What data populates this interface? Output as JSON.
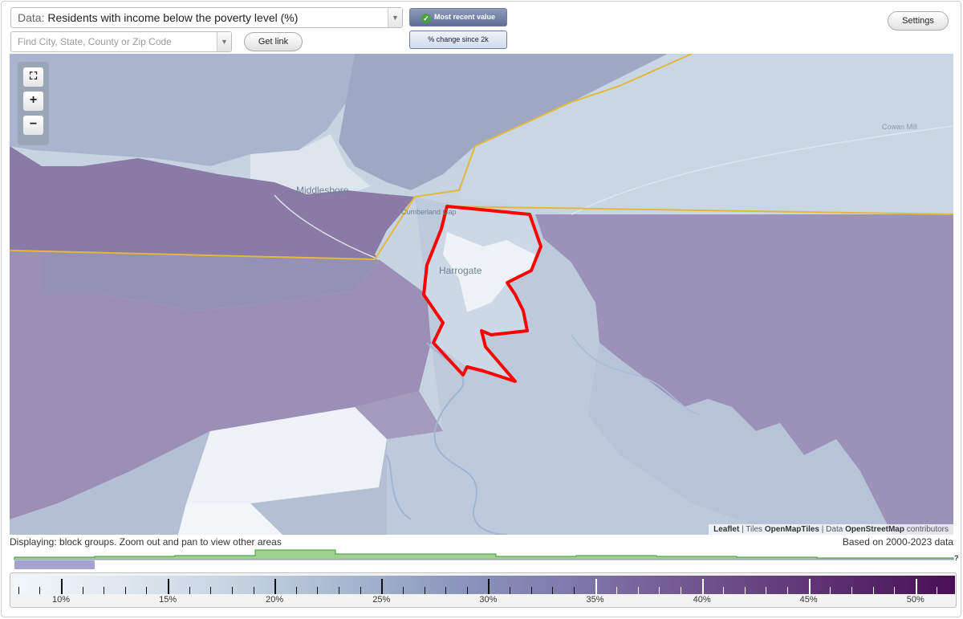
{
  "controls": {
    "data_prefix": "Data:",
    "data_value": "Residents with income below the poverty level (%)",
    "search_placeholder": "Find City, State, County or Zip Code",
    "get_link": "Get link",
    "mode_recent": "Most recent value",
    "mode_change": "% change since 2k",
    "settings": "Settings"
  },
  "map": {
    "labels": {
      "harrogate": "Harrogate",
      "middlesboro": "Middlesboro",
      "cumberland": "Cumberland Gap",
      "cowan_mill": "Cowan Mill"
    },
    "zoom_controls": {
      "fullscreen": "⛶",
      "zoom_in": "+",
      "zoom_out": "−"
    },
    "attribution": {
      "leaflet": "Leaflet",
      "sep1": " | Tiles ",
      "tiles": "OpenMapTiles",
      "sep2": " | Data ",
      "data": "OpenStreetMap",
      "contributors": " contributors"
    },
    "selected_area_color": "#ff0000",
    "state_border_color": "#e3b83a"
  },
  "footer": {
    "displaying": "Displaying: block groups. Zoom out and pan to view other areas",
    "based_on": "Based on 2000-2023 data",
    "hist_unknown": "?"
  },
  "legend": {
    "labels": [
      "10%",
      "15%",
      "20%",
      "25%",
      "30%",
      "35%",
      "40%",
      "45%",
      "50%"
    ],
    "color_low": "#f3f7fa",
    "color_high": "#4a0e55"
  }
}
